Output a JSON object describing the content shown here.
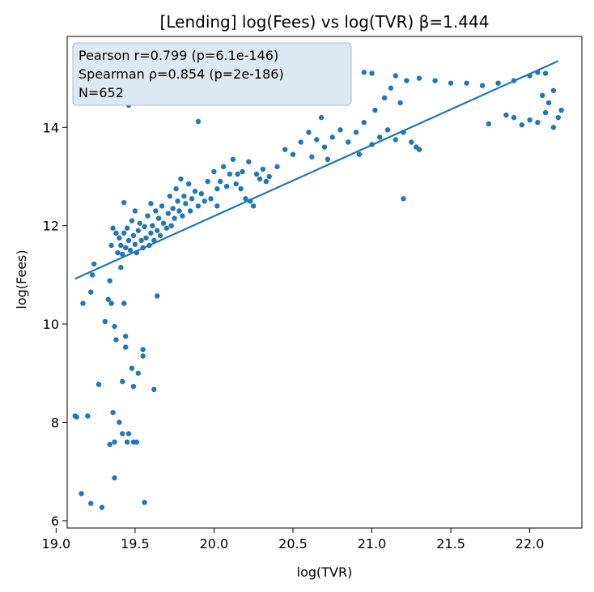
{
  "chart_data": {
    "type": "scatter",
    "title": "[Lending] log(Fees) vs log(TVR)  β=1.444",
    "xlabel": "log(TVR)",
    "ylabel": "log(Fees)",
    "xlim": [
      19.07,
      22.33
    ],
    "ylim": [
      5.85,
      15.85
    ],
    "xticks": [
      19.0,
      19.5,
      20.0,
      20.5,
      21.0,
      21.5,
      22.0
    ],
    "xtick_labels": [
      "19.0",
      "19.5",
      "20.0",
      "20.5",
      "21.0",
      "21.5",
      "22.0"
    ],
    "yticks": [
      6,
      8,
      10,
      12,
      14
    ],
    "ytick_labels": [
      "6",
      "8",
      "10",
      "12",
      "14"
    ],
    "grid": false,
    "point_color": "#1f77b4",
    "line_color": "#1f77b4",
    "stats": {
      "pearson": "Pearson r=0.799 (p=6.1e-146)",
      "spearman": "Spearman ρ=0.854 (p=2e-186)",
      "n": "N=652"
    },
    "fit_line": {
      "x": [
        19.12,
        22.18
      ],
      "y": [
        10.92,
        15.35
      ]
    },
    "points": [
      [
        19.12,
        8.13
      ],
      [
        19.13,
        8.11
      ],
      [
        19.16,
        6.55
      ],
      [
        19.17,
        10.42
      ],
      [
        19.2,
        8.13
      ],
      [
        19.22,
        6.35
      ],
      [
        19.22,
        10.65
      ],
      [
        19.23,
        11.0
      ],
      [
        19.24,
        11.22
      ],
      [
        19.27,
        8.77
      ],
      [
        19.29,
        6.27
      ],
      [
        19.31,
        10.05
      ],
      [
        19.33,
        10.5
      ],
      [
        19.34,
        10.88
      ],
      [
        19.34,
        7.55
      ],
      [
        19.35,
        11.6
      ],
      [
        19.35,
        10.42
      ],
      [
        19.36,
        11.95
      ],
      [
        19.36,
        8.2
      ],
      [
        19.37,
        9.95
      ],
      [
        19.37,
        7.6
      ],
      [
        19.37,
        6.87
      ],
      [
        19.38,
        11.85
      ],
      [
        19.38,
        9.68
      ],
      [
        19.4,
        8.0
      ],
      [
        19.41,
        11.15
      ],
      [
        19.42,
        7.77
      ],
      [
        19.42,
        8.83
      ],
      [
        19.43,
        12.47
      ],
      [
        19.43,
        10.42
      ],
      [
        19.44,
        9.75
      ],
      [
        19.44,
        9.53
      ],
      [
        19.45,
        7.6
      ],
      [
        19.46,
        7.77
      ],
      [
        19.46,
        14.45
      ],
      [
        19.48,
        9.1
      ],
      [
        19.49,
        7.6
      ],
      [
        19.49,
        8.73
      ],
      [
        19.51,
        7.6
      ],
      [
        19.52,
        9.0
      ],
      [
        19.55,
        9.35
      ],
      [
        19.55,
        9.48
      ],
      [
        19.56,
        6.37
      ],
      [
        19.62,
        8.67
      ],
      [
        19.64,
        10.57
      ],
      [
        19.9,
        14.12
      ],
      [
        20.67,
        14.97
      ],
      [
        21.2,
        12.55
      ],
      [
        21.74,
        14.07
      ],
      [
        20.02,
        12.4
      ],
      [
        19.39,
        11.45
      ],
      [
        19.4,
        11.75
      ],
      [
        19.41,
        11.6
      ],
      [
        19.42,
        11.42
      ],
      [
        19.43,
        11.85
      ],
      [
        19.44,
        11.55
      ],
      [
        19.45,
        11.95
      ],
      [
        19.46,
        11.7
      ],
      [
        19.47,
        11.5
      ],
      [
        19.48,
        12.1
      ],
      [
        19.49,
        11.8
      ],
      [
        19.5,
        11.62
      ],
      [
        19.5,
        12.3
      ],
      [
        19.51,
        11.45
      ],
      [
        19.52,
        11.9
      ],
      [
        19.53,
        12.05
      ],
      [
        19.54,
        11.7
      ],
      [
        19.55,
        11.55
      ],
      [
        19.56,
        11.98
      ],
      [
        19.57,
        11.75
      ],
      [
        19.58,
        12.2
      ],
      [
        19.59,
        11.6
      ],
      [
        19.6,
        11.85
      ],
      [
        19.6,
        12.45
      ],
      [
        19.61,
        12.0
      ],
      [
        19.62,
        11.7
      ],
      [
        19.63,
        12.3
      ],
      [
        19.64,
        11.9
      ],
      [
        19.65,
        12.15
      ],
      [
        19.66,
        11.8
      ],
      [
        19.67,
        12.4
      ],
      [
        19.68,
        12.05
      ],
      [
        19.7,
        11.95
      ],
      [
        19.71,
        12.25
      ],
      [
        19.72,
        12.6
      ],
      [
        19.73,
        12.0
      ],
      [
        19.74,
        12.35
      ],
      [
        19.75,
        12.15
      ],
      [
        19.76,
        12.75
      ],
      [
        19.77,
        12.5
      ],
      [
        19.78,
        12.3
      ],
      [
        19.79,
        12.95
      ],
      [
        19.8,
        12.2
      ],
      [
        19.81,
        12.6
      ],
      [
        19.82,
        12.45
      ],
      [
        19.84,
        12.85
      ],
      [
        19.85,
        12.3
      ],
      [
        19.86,
        12.55
      ],
      [
        19.88,
        12.7
      ],
      [
        19.9,
        12.4
      ],
      [
        19.92,
        12.65
      ],
      [
        19.94,
        12.5
      ],
      [
        19.96,
        12.9
      ],
      [
        19.98,
        12.55
      ],
      [
        20.0,
        13.1
      ],
      [
        20.02,
        12.75
      ],
      [
        20.04,
        12.9
      ],
      [
        20.06,
        13.2
      ],
      [
        20.08,
        12.8
      ],
      [
        20.1,
        13.05
      ],
      [
        20.12,
        13.35
      ],
      [
        20.14,
        12.85
      ],
      [
        20.15,
        13.05
      ],
      [
        20.17,
        12.75
      ],
      [
        20.18,
        13.1
      ],
      [
        20.2,
        12.55
      ],
      [
        20.22,
        13.3
      ],
      [
        20.23,
        12.5
      ],
      [
        20.25,
        12.4
      ],
      [
        20.27,
        13.05
      ],
      [
        20.29,
        12.95
      ],
      [
        20.31,
        13.15
      ],
      [
        20.33,
        12.9
      ],
      [
        20.35,
        13.0
      ],
      [
        20.4,
        13.2
      ],
      [
        20.45,
        13.55
      ],
      [
        20.5,
        13.45
      ],
      [
        20.55,
        13.7
      ],
      [
        20.6,
        13.9
      ],
      [
        20.62,
        13.4
      ],
      [
        20.65,
        13.75
      ],
      [
        20.68,
        14.2
      ],
      [
        20.7,
        13.6
      ],
      [
        20.72,
        13.35
      ],
      [
        20.75,
        13.8
      ],
      [
        20.8,
        13.95
      ],
      [
        20.85,
        13.7
      ],
      [
        20.9,
        13.9
      ],
      [
        20.92,
        13.45
      ],
      [
        20.95,
        14.1
      ],
      [
        21.0,
        13.65
      ],
      [
        21.02,
        14.35
      ],
      [
        21.05,
        13.8
      ],
      [
        21.08,
        14.6
      ],
      [
        21.1,
        13.95
      ],
      [
        21.12,
        14.8
      ],
      [
        21.15,
        13.75
      ],
      [
        21.18,
        14.5
      ],
      [
        21.2,
        13.9
      ],
      [
        21.22,
        14.95
      ],
      [
        21.25,
        13.7
      ],
      [
        21.28,
        13.6
      ],
      [
        21.3,
        13.55
      ],
      [
        20.95,
        15.12
      ],
      [
        21.0,
        15.1
      ],
      [
        21.15,
        15.05
      ],
      [
        21.3,
        15.0
      ],
      [
        21.4,
        14.95
      ],
      [
        21.5,
        14.9
      ],
      [
        21.6,
        14.9
      ],
      [
        21.7,
        14.85
      ],
      [
        21.8,
        14.9
      ],
      [
        21.9,
        14.95
      ],
      [
        22.0,
        15.05
      ],
      [
        22.05,
        15.12
      ],
      [
        22.1,
        15.1
      ],
      [
        21.85,
        14.25
      ],
      [
        21.9,
        14.2
      ],
      [
        21.95,
        14.05
      ],
      [
        22.0,
        14.15
      ],
      [
        22.05,
        14.1
      ],
      [
        22.1,
        14.3
      ],
      [
        22.15,
        14.0
      ],
      [
        22.18,
        14.2
      ],
      [
        22.12,
        14.5
      ],
      [
        22.08,
        14.65
      ],
      [
        22.15,
        14.75
      ],
      [
        22.2,
        14.35
      ]
    ]
  }
}
